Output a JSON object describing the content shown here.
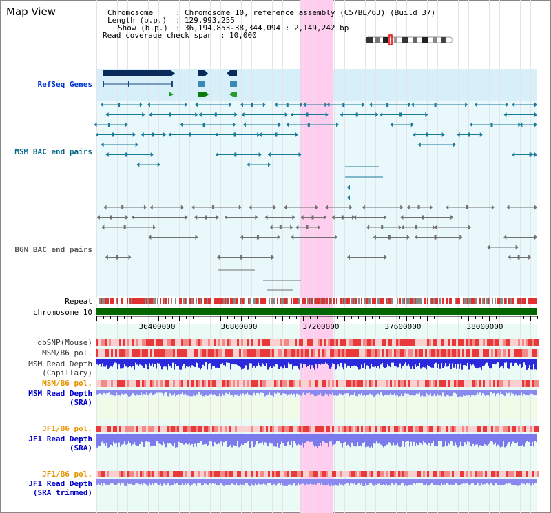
{
  "title": "Map View",
  "info": {
    "chromosome_key": "Chromosome",
    "chromosome_value": "Chromosome 10, reference assembly (C57BL/6J) (Build 37)",
    "length_key": "Length (b.p.)",
    "length_value": "129,993,255",
    "show_key": "Show (b.p.)",
    "show_value": "36,194,853-38,344,094 : 2,149,242 bp",
    "coverage_key": "Read coverage check span",
    "coverage_value": "10,000"
  },
  "tracks": {
    "refseq": "RefSeq Genes",
    "msm_bac": "MSM BAC end pairs",
    "b6n_bac": "B6N BAC end pairs",
    "repeat": "Repeat",
    "chromosome": "chromosome 10",
    "dbsnp": "dbSNP(Mouse)",
    "msm_b6_pol": "MSM/B6 pol.",
    "msm_read_depth_cap_1": "MSM Read Depth",
    "msm_read_depth_cap_2": "(Capillary)",
    "msm_b6_pol_sra": "MSM/B6 pol.",
    "msm_read_depth_sra_1": "MSM Read Depth",
    "msm_read_depth_sra_2": "(SRA)",
    "jf1_b6_pol": "JF1/B6 pol.",
    "jf1_read_depth_1": "JF1 Read Depth",
    "jf1_read_depth_2": "(SRA)",
    "jf1_b6_pol_trim": "JF1/B6 pol.",
    "jf1_read_depth_trim_1": "JF1 Read Depth",
    "jf1_read_depth_trim_2": "(SRA trimmed)"
  },
  "axis_ticks": [
    "36400000",
    "36800000",
    "37200000",
    "37600000",
    "38000000"
  ],
  "colors": {
    "refseq_label": "#0033cc",
    "msm_bac_label": "#006688",
    "b6n_bac_label": "#555555",
    "orange_label": "#e69500",
    "blue_label": "#0000cc",
    "highlight": "#ffccee",
    "chromosome_bar": "#006600"
  }
}
